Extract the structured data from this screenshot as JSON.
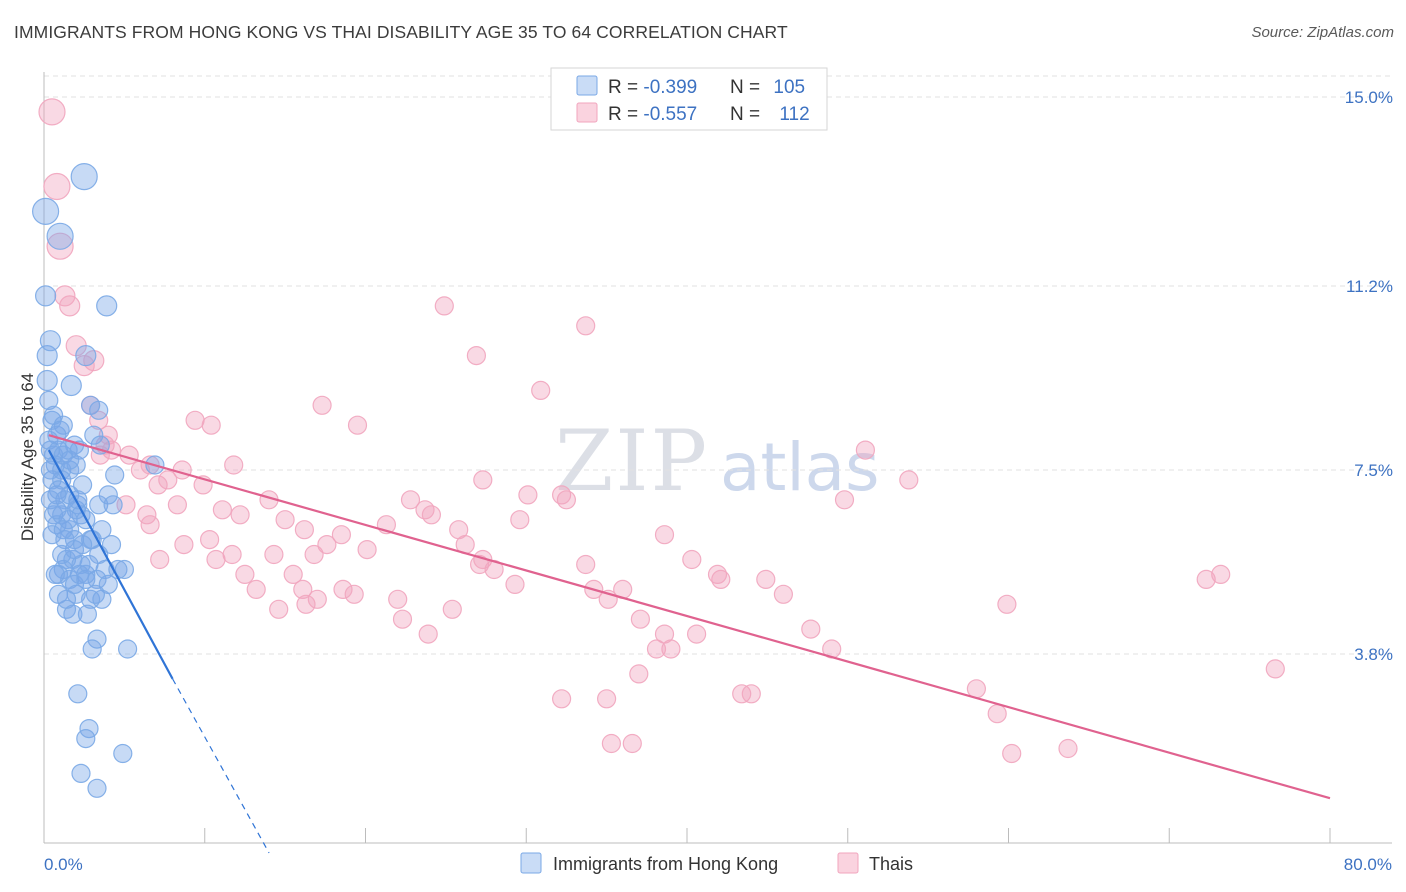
{
  "header": {
    "title": "IMMIGRANTS FROM HONG KONG VS THAI DISABILITY AGE 35 TO 64 CORRELATION CHART",
    "source": "Source: ZipAtlas.com"
  },
  "watermark": {
    "part1": "ZIP",
    "part2": "atlas"
  },
  "legend": {
    "rows": [
      {
        "r_label": "R = ",
        "r_value": "-0.399",
        "n_label": "N = ",
        "n_value": "105"
      },
      {
        "r_label": "R = ",
        "r_value": "-0.557",
        "n_label": "N = ",
        "n_value": "112"
      }
    ]
  },
  "chart_data": {
    "type": "scatter",
    "title": "IMMIGRANTS FROM HONG KONG VS THAI DISABILITY AGE 35 TO 64 CORRELATION CHART",
    "xlabel": "",
    "ylabel": "Disability Age 35 to 64",
    "xlim": [
      0,
      80
    ],
    "ylim": [
      0,
      15.9
    ],
    "x_tick_labels": [
      "0.0%",
      "80.0%"
    ],
    "y_ticks": [
      3.8,
      7.5,
      11.2,
      15.0
    ],
    "y_tick_labels": [
      "3.8%",
      "7.5%",
      "11.2%",
      "15.0%"
    ],
    "grid": true,
    "legend_position": "top-center",
    "colors": {
      "hongkong": "#7aa8e6",
      "hongkong_line": "#2f74d6",
      "thais": "#f1a5be",
      "thais_line": "#e0628f"
    },
    "series": [
      {
        "name": "Immigrants from Hong Kong",
        "r": -0.399,
        "n": 105,
        "trend": {
          "x0": 0.3,
          "y0": 7.9,
          "x1": 8.0,
          "y1": 3.3,
          "dash_x1": 14.0,
          "dash_y1": -0.2
        },
        "points": [
          [
            0.1,
            12.7
          ],
          [
            0.1,
            11.0
          ],
          [
            0.2,
            9.8
          ],
          [
            0.4,
            10.1
          ],
          [
            0.2,
            9.3
          ],
          [
            0.3,
            8.9
          ],
          [
            0.5,
            8.5
          ],
          [
            1.2,
            8.4
          ],
          [
            0.3,
            8.1
          ],
          [
            0.4,
            7.9
          ],
          [
            0.6,
            7.8
          ],
          [
            0.9,
            7.9
          ],
          [
            1.2,
            7.8
          ],
          [
            1.5,
            7.9
          ],
          [
            0.7,
            7.6
          ],
          [
            1.1,
            7.5
          ],
          [
            1.6,
            7.5
          ],
          [
            0.5,
            7.3
          ],
          [
            1.1,
            7.3
          ],
          [
            0.9,
            7.1
          ],
          [
            0.4,
            6.9
          ],
          [
            1.3,
            6.9
          ],
          [
            0.6,
            6.6
          ],
          [
            1.1,
            6.6
          ],
          [
            2.1,
            6.8
          ],
          [
            2.3,
            6.6
          ],
          [
            0.8,
            6.4
          ],
          [
            1.6,
            6.3
          ],
          [
            1.9,
            6.1
          ],
          [
            2.6,
            6.5
          ],
          [
            2.9,
            6.1
          ],
          [
            0.5,
            6.2
          ],
          [
            1.4,
            5.7
          ],
          [
            1.8,
            5.7
          ],
          [
            1.2,
            5.5
          ],
          [
            2.3,
            5.6
          ],
          [
            0.9,
            5.4
          ],
          [
            1.6,
            5.3
          ],
          [
            2.6,
            5.4
          ],
          [
            3.3,
            5.3
          ],
          [
            2.0,
            5.0
          ],
          [
            2.9,
            4.9
          ],
          [
            1.4,
            4.7
          ],
          [
            1.8,
            4.6
          ],
          [
            3.4,
            6.8
          ],
          [
            3.6,
            6.3
          ],
          [
            3.8,
            5.5
          ],
          [
            4.6,
            5.5
          ],
          [
            4.0,
            5.2
          ],
          [
            3.6,
            4.9
          ],
          [
            2.6,
            9.8
          ],
          [
            1.0,
            12.2
          ],
          [
            2.5,
            13.4
          ],
          [
            3.9,
            10.8
          ],
          [
            3.4,
            8.7
          ],
          [
            3.1,
            8.2
          ],
          [
            4.4,
            7.4
          ],
          [
            4.0,
            7.0
          ],
          [
            4.3,
            6.8
          ],
          [
            5.0,
            5.5
          ],
          [
            2.7,
            4.6
          ],
          [
            3.3,
            4.1
          ],
          [
            3.0,
            3.9
          ],
          [
            5.2,
            3.9
          ],
          [
            2.1,
            3.0
          ],
          [
            2.8,
            2.3
          ],
          [
            2.6,
            2.1
          ],
          [
            4.9,
            1.8
          ],
          [
            2.3,
            1.4
          ],
          [
            3.3,
            1.1
          ],
          [
            2.0,
            6.7
          ],
          [
            2.4,
            7.2
          ],
          [
            3.0,
            6.1
          ],
          [
            0.8,
            8.2
          ],
          [
            1.9,
            8.0
          ],
          [
            2.0,
            7.6
          ],
          [
            1.6,
            7.0
          ],
          [
            0.8,
            6.7
          ],
          [
            1.3,
            6.1
          ],
          [
            2.2,
            5.4
          ],
          [
            1.9,
            5.2
          ],
          [
            0.9,
            5.0
          ],
          [
            2.6,
            5.3
          ],
          [
            3.4,
            5.8
          ],
          [
            1.5,
            6.5
          ],
          [
            2.1,
            6.9
          ],
          [
            1.6,
            7.7
          ],
          [
            2.2,
            7.9
          ],
          [
            0.6,
            8.6
          ],
          [
            1.0,
            8.3
          ],
          [
            1.7,
            9.2
          ],
          [
            2.9,
            8.8
          ],
          [
            3.5,
            8.0
          ],
          [
            0.4,
            7.5
          ],
          [
            0.8,
            7.0
          ],
          [
            1.2,
            6.3
          ],
          [
            1.9,
            5.9
          ],
          [
            2.8,
            5.6
          ],
          [
            3.2,
            5.0
          ],
          [
            1.4,
            4.9
          ],
          [
            0.7,
            5.4
          ],
          [
            1.1,
            5.8
          ],
          [
            2.4,
            6.0
          ],
          [
            4.2,
            6.0
          ],
          [
            6.9,
            7.6
          ]
        ]
      },
      {
        "name": "Thais",
        "r": -0.557,
        "n": 112,
        "trend": {
          "x0": 0.3,
          "y0": 8.2,
          "x1": 80.0,
          "y1": 0.9
        },
        "points": [
          [
            0.5,
            14.7
          ],
          [
            0.8,
            13.2
          ],
          [
            1.0,
            12.0
          ],
          [
            1.3,
            11.0
          ],
          [
            1.6,
            10.8
          ],
          [
            2.0,
            10.0
          ],
          [
            2.5,
            9.6
          ],
          [
            3.1,
            9.7
          ],
          [
            2.9,
            8.8
          ],
          [
            3.4,
            8.5
          ],
          [
            4.0,
            8.2
          ],
          [
            3.8,
            8.0
          ],
          [
            3.5,
            7.8
          ],
          [
            4.2,
            7.9
          ],
          [
            5.3,
            7.8
          ],
          [
            6.0,
            7.5
          ],
          [
            6.6,
            7.6
          ],
          [
            7.7,
            7.3
          ],
          [
            8.6,
            7.5
          ],
          [
            9.9,
            7.2
          ],
          [
            11.8,
            7.6
          ],
          [
            7.1,
            7.2
          ],
          [
            8.3,
            6.8
          ],
          [
            6.4,
            6.6
          ],
          [
            5.1,
            6.8
          ],
          [
            6.6,
            6.4
          ],
          [
            8.7,
            6.0
          ],
          [
            10.3,
            6.1
          ],
          [
            11.1,
            6.7
          ],
          [
            12.2,
            6.6
          ],
          [
            14.0,
            6.9
          ],
          [
            15.0,
            6.5
          ],
          [
            16.2,
            6.3
          ],
          [
            16.8,
            5.8
          ],
          [
            17.6,
            6.0
          ],
          [
            18.5,
            6.2
          ],
          [
            20.1,
            5.9
          ],
          [
            21.3,
            6.4
          ],
          [
            22.8,
            6.9
          ],
          [
            23.7,
            6.7
          ],
          [
            24.1,
            6.6
          ],
          [
            25.8,
            6.3
          ],
          [
            26.2,
            6.0
          ],
          [
            27.1,
            5.6
          ],
          [
            27.3,
            5.7
          ],
          [
            29.3,
            5.2
          ],
          [
            9.4,
            8.5
          ],
          [
            10.4,
            8.4
          ],
          [
            17.3,
            8.8
          ],
          [
            19.5,
            8.4
          ],
          [
            7.2,
            5.7
          ],
          [
            10.7,
            5.7
          ],
          [
            11.7,
            5.8
          ],
          [
            12.5,
            5.4
          ],
          [
            13.2,
            5.1
          ],
          [
            14.3,
            5.8
          ],
          [
            15.5,
            5.4
          ],
          [
            16.1,
            5.1
          ],
          [
            17.0,
            4.9
          ],
          [
            18.6,
            5.1
          ],
          [
            19.3,
            5.0
          ],
          [
            16.3,
            4.8
          ],
          [
            14.6,
            4.7
          ],
          [
            22.0,
            4.9
          ],
          [
            22.3,
            4.5
          ],
          [
            23.9,
            4.2
          ],
          [
            25.4,
            4.7
          ],
          [
            28.0,
            5.5
          ],
          [
            29.6,
            6.5
          ],
          [
            27.3,
            7.3
          ],
          [
            30.1,
            7.0
          ],
          [
            32.2,
            7.0
          ],
          [
            32.5,
            6.9
          ],
          [
            33.7,
            5.6
          ],
          [
            34.2,
            5.1
          ],
          [
            35.1,
            4.9
          ],
          [
            36.0,
            5.1
          ],
          [
            37.1,
            4.5
          ],
          [
            38.6,
            4.2
          ],
          [
            39.0,
            3.9
          ],
          [
            38.1,
            3.9
          ],
          [
            37.0,
            3.4
          ],
          [
            35.0,
            2.9
          ],
          [
            35.3,
            2.0
          ],
          [
            32.2,
            2.9
          ],
          [
            38.6,
            6.2
          ],
          [
            40.3,
            5.7
          ],
          [
            41.9,
            5.4
          ],
          [
            42.1,
            5.3
          ],
          [
            44.9,
            5.3
          ],
          [
            43.4,
            3.0
          ],
          [
            44.0,
            3.0
          ],
          [
            40.6,
            4.2
          ],
          [
            46.0,
            5.0
          ],
          [
            47.7,
            4.3
          ],
          [
            49.0,
            3.9
          ],
          [
            49.8,
            6.9
          ],
          [
            51.1,
            7.9
          ],
          [
            53.8,
            7.3
          ],
          [
            59.9,
            4.8
          ],
          [
            58.0,
            3.1
          ],
          [
            59.3,
            2.6
          ],
          [
            60.2,
            1.8
          ],
          [
            63.7,
            1.9
          ],
          [
            72.3,
            5.3
          ],
          [
            73.2,
            5.4
          ],
          [
            76.6,
            3.5
          ],
          [
            36.6,
            2.0
          ],
          [
            24.9,
            10.8
          ],
          [
            26.9,
            9.8
          ],
          [
            30.9,
            9.1
          ],
          [
            33.7,
            10.4
          ]
        ]
      }
    ]
  }
}
